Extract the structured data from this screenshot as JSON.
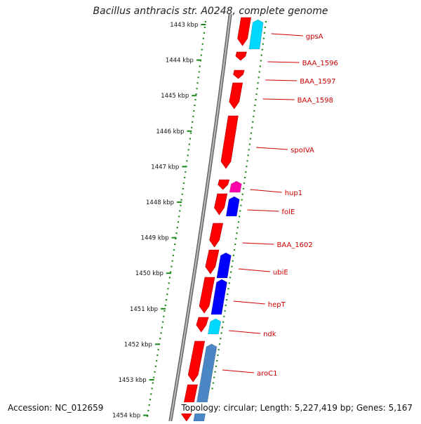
{
  "title": "Bacillus anthracis str. A0248, complete genome",
  "footer": {
    "accession": "Accession: NC_012659",
    "summary": "Topology: circular; Length: 5,227,419 bp; Genes: 5,167"
  },
  "colors": {
    "forward_cds": "#ff0000",
    "reverse_cds_blue": "#0000ff",
    "reverse_cds_cyan": "#00d8ff",
    "reverse_cds_magenta": "#ff00aa",
    "steel_blue": "#4a86c4",
    "backbone": "#8c8c8c",
    "ruler": "#1a8a1a",
    "gene_label": "#cc0000"
  },
  "ruler_ticks": [
    {
      "label": "1443 kbp",
      "kbp": 1443
    },
    {
      "label": "1444 kbp",
      "kbp": 1444
    },
    {
      "label": "1445 kbp",
      "kbp": 1445
    },
    {
      "label": "1446 kbp",
      "kbp": 1446
    },
    {
      "label": "1447 kbp",
      "kbp": 1447
    },
    {
      "label": "1448 kbp",
      "kbp": 1448
    },
    {
      "label": "1449 kbp",
      "kbp": 1449
    },
    {
      "label": "1450 kbp",
      "kbp": 1450
    },
    {
      "label": "1451 kbp",
      "kbp": 1451
    },
    {
      "label": "1452 kbp",
      "kbp": 1452
    },
    {
      "label": "1453 kbp",
      "kbp": 1453
    },
    {
      "label": "1454 kbp",
      "kbp": 1454
    }
  ],
  "gene_labels": [
    "gpsA",
    "BAA_1596",
    "BAA_1597",
    "BAA_1598",
    "spoIVA",
    "hup1",
    "folE",
    "BAA_1602",
    "ubiE",
    "hepT",
    "ndk",
    "aroC1"
  ]
}
